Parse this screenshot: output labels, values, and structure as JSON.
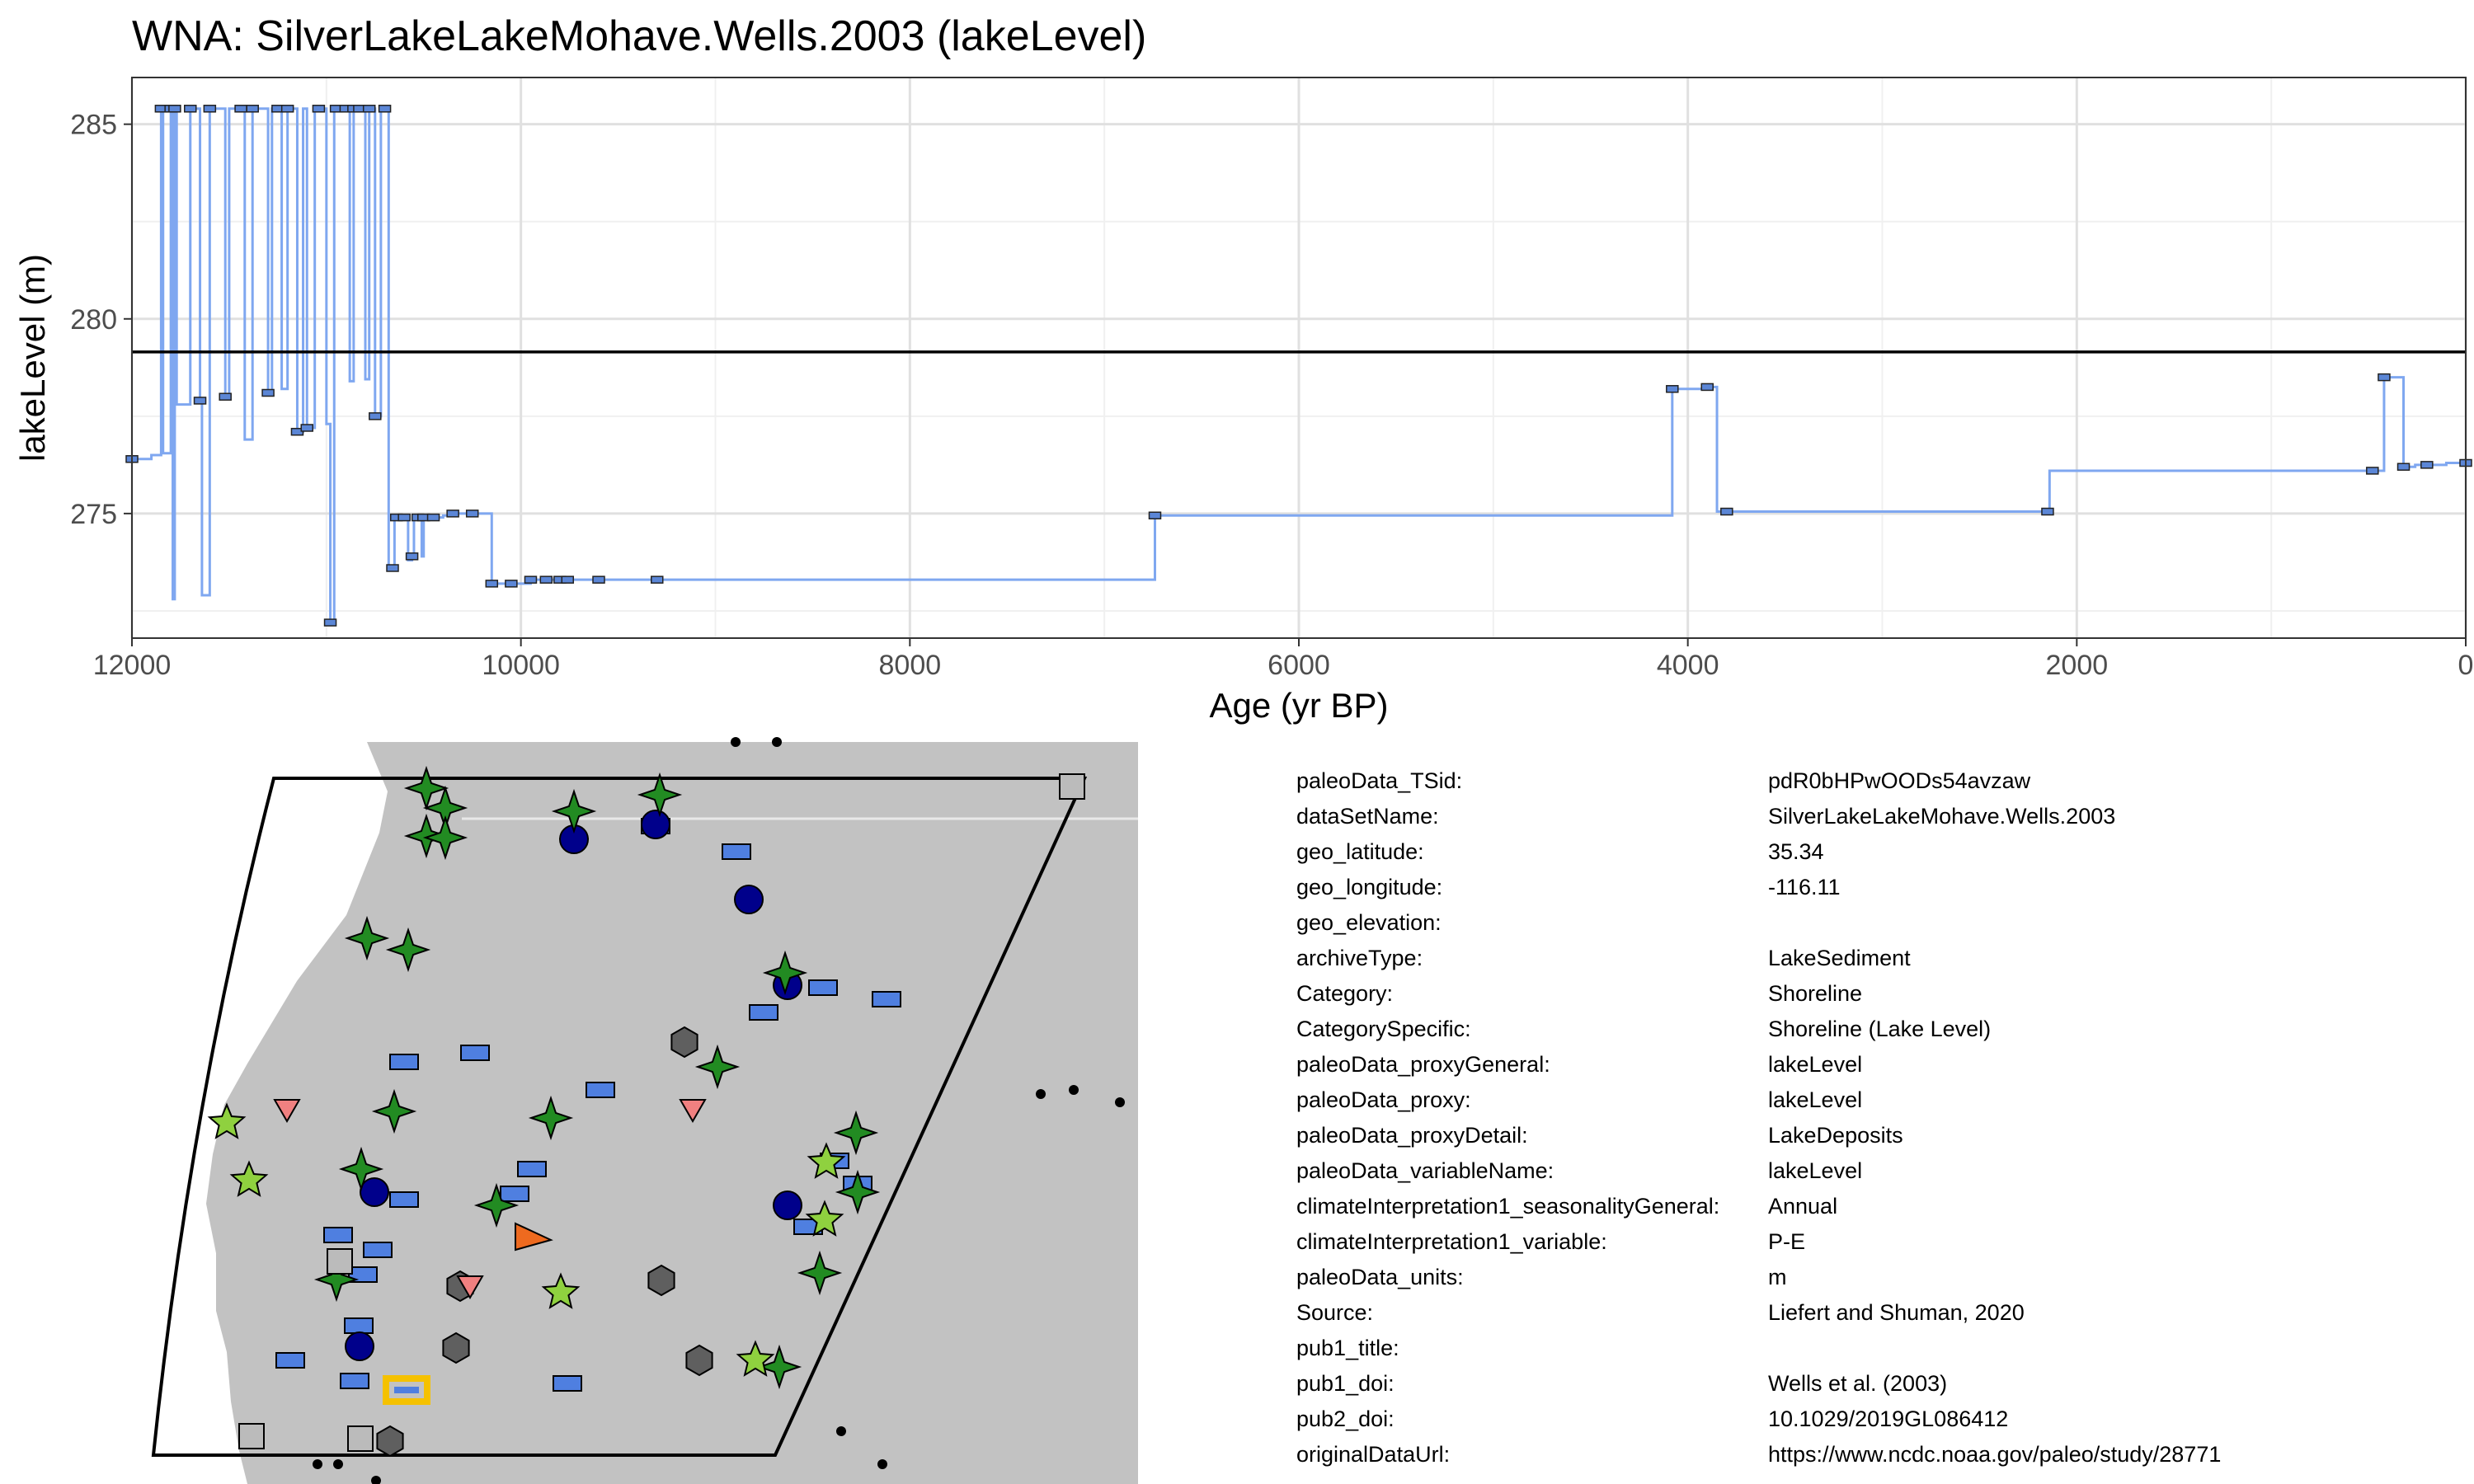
{
  "title": "WNA: SilverLakeLakeMohave.Wells.2003 (lakeLevel)",
  "chart_data": {
    "type": "line",
    "step": true,
    "xlabel": "Age (yr BP)",
    "ylabel": "lakeLevel (m)",
    "xlim": [
      12000,
      0
    ],
    "x_reversed": true,
    "ylim": [
      271.8,
      286.2
    ],
    "x_ticks": [
      12000,
      10000,
      8000,
      6000,
      4000,
      2000,
      0
    ],
    "x_tick_labels": [
      "12000",
      "10000",
      "8000",
      "6000",
      "4000",
      "2000",
      "0"
    ],
    "y_ticks": [
      275,
      280,
      285
    ],
    "y_tick_labels": [
      "275",
      "280",
      "285"
    ],
    "grid": true,
    "reference_line": 279.15,
    "line_color": "#7fa7f0",
    "marker_color": "#5b86d6",
    "series": [
      {
        "x": [
          12000,
          11900,
          11850,
          11840,
          11800,
          11790,
          11780,
          11770,
          11700,
          11690,
          11650,
          11640,
          11600,
          11560,
          11520,
          11500,
          11440,
          11420,
          11380,
          11340,
          11300,
          11280,
          11250,
          11230,
          11200,
          11180,
          11150,
          11120,
          11100,
          11060,
          11040,
          11000,
          10980,
          10960,
          10950,
          10930,
          10900,
          10880,
          10860,
          10850,
          10830,
          10800,
          10780,
          10770,
          10750,
          10720,
          10700,
          10680,
          10660,
          10650,
          10640,
          10620,
          10600,
          10580,
          10560,
          10550,
          10530,
          10510,
          10500,
          10480,
          10450,
          10400,
          10350,
          10300,
          10250,
          10200,
          10150,
          10100,
          10050,
          10000,
          9950,
          9900,
          9870,
          9850,
          9800,
          9780,
          9760,
          9700,
          9600,
          9500,
          9300,
          6750,
          6740,
          4100,
          4080,
          3950,
          3900,
          3850,
          3800,
          3700,
          2150,
          2140,
          480,
          460,
          420,
          380,
          320,
          260,
          200,
          100,
          0
        ],
        "y": [
          276.4,
          276.5,
          285.4,
          276.55,
          285.4,
          272.8,
          285.4,
          277.8,
          285.4,
          285.4,
          277.9,
          272.9,
          285.4,
          285.4,
          278.0,
          285.4,
          285.4,
          276.9,
          285.4,
          285.4,
          278.1,
          285.4,
          285.4,
          278.2,
          285.4,
          285.4,
          277.1,
          285.4,
          277.2,
          285.4,
          285.4,
          277.3,
          272.2,
          285.4,
          285.4,
          285.4,
          285.4,
          278.4,
          285.4,
          285.4,
          285.4,
          278.45,
          285.4,
          285.4,
          277.5,
          285.4,
          285.4,
          273.6,
          273.6,
          274.9,
          274.9,
          274.9,
          274.9,
          273.8,
          273.9,
          274.9,
          274.9,
          273.9,
          274.9,
          274.9,
          274.9,
          274.95,
          275.0,
          275.0,
          275.0,
          275.0,
          273.2,
          273.2,
          273.2,
          273.2,
          273.3,
          273.3,
          273.3,
          273.3,
          273.3,
          273.3,
          273.3,
          273.3,
          273.3,
          273.3,
          273.3,
          273.3,
          274.95,
          274.95,
          278.2,
          278.2,
          278.25,
          275.05,
          275.05,
          275.05,
          275.05,
          276.1,
          276.1,
          276.1,
          278.5,
          278.5,
          276.2,
          276.25,
          276.25,
          276.3,
          276.3
        ]
      }
    ]
  },
  "map": {
    "land_color": "#c2c2c2",
    "legend_hint": ""
  },
  "metadata": [
    {
      "key": "paleoData_TSid:",
      "value": "pdR0bHPwOODs54avzaw"
    },
    {
      "key": "dataSetName:",
      "value": "SilverLakeLakeMohave.Wells.2003"
    },
    {
      "key": "geo_latitude:",
      "value": "35.34"
    },
    {
      "key": "geo_longitude:",
      "value": "-116.11"
    },
    {
      "key": "geo_elevation:",
      "value": ""
    },
    {
      "key": "archiveType:",
      "value": "LakeSediment"
    },
    {
      "key": "Category:",
      "value": "Shoreline"
    },
    {
      "key": "CategorySpecific:",
      "value": "Shoreline (Lake Level)"
    },
    {
      "key": "paleoData_proxyGeneral:",
      "value": "lakeLevel"
    },
    {
      "key": "paleoData_proxy:",
      "value": "lakeLevel"
    },
    {
      "key": "paleoData_proxyDetail:",
      "value": "LakeDeposits"
    },
    {
      "key": "paleoData_variableName:",
      "value": "lakeLevel"
    },
    {
      "key": "climateInterpretation1_seasonalityGeneral:",
      "value": "Annual"
    },
    {
      "key": "climateInterpretation1_variable:",
      "value": "P-E"
    },
    {
      "key": "paleoData_units:",
      "value": "m"
    },
    {
      "key": "Source:",
      "value": "Liefert and Shuman, 2020"
    },
    {
      "key": "pub1_title:",
      "value": ""
    },
    {
      "key": "pub1_doi:",
      "value": "Wells et al. (2003)"
    },
    {
      "key": "pub2_doi:",
      "value": "10.1029/2019GL086412"
    },
    {
      "key": "originalDataUrl:",
      "value": "https://www.ncdc.noaa.gov/paleo/study/28771"
    }
  ]
}
